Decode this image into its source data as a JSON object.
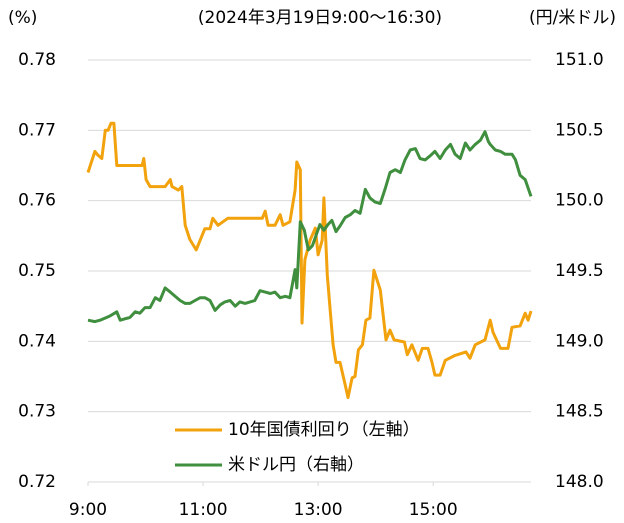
{
  "chart_data": {
    "type": "line",
    "title": "(2024年3月19日9:00～16:30)",
    "ylabel": "(%)",
    "y2label": "(円/米ドル)",
    "xlim": [
      9,
      16.7
    ],
    "xticks": [
      {
        "value": 9,
        "label": "9:00"
      },
      {
        "value": 11,
        "label": "11:00"
      },
      {
        "value": 13,
        "label": "13:00"
      },
      {
        "value": 15,
        "label": "15:00"
      }
    ],
    "ylim": [
      0.72,
      0.78
    ],
    "yticks": [
      0.72,
      0.73,
      0.74,
      0.75,
      0.76,
      0.77,
      0.78
    ],
    "y2lim": [
      148,
      151
    ],
    "y2ticks": [
      {
        "value": 148,
        "label": "148.0"
      },
      148.5,
      {
        "value": 149,
        "label": "149.0"
      },
      149.5,
      {
        "value": 150,
        "label": "150.0"
      },
      150.5,
      {
        "value": 151,
        "label": "151.0"
      }
    ],
    "grid": true,
    "legend": "lower center",
    "series": [
      {
        "name": "10年国債利回り（左軸）",
        "color": "#f2a20c",
        "x": [
          9.0,
          9.12,
          9.17,
          9.24,
          9.3,
          9.35,
          9.4,
          9.45,
          9.5,
          9.94,
          9.97,
          10.01,
          10.08,
          10.34,
          10.43,
          10.46,
          10.57,
          10.63,
          10.69,
          10.77,
          10.88,
          11.03,
          11.12,
          11.17,
          11.26,
          11.43,
          12.03,
          12.08,
          12.13,
          12.25,
          12.34,
          12.39,
          12.51,
          12.6,
          12.63,
          12.69,
          12.72,
          12.77,
          12.86,
          12.95,
          13.0,
          13.07,
          13.1,
          13.16,
          13.21,
          13.26,
          13.31,
          13.38,
          13.47,
          13.52,
          13.59,
          13.64,
          13.7,
          13.77,
          13.83,
          13.9,
          13.97,
          14.08,
          14.15,
          14.18,
          14.25,
          14.32,
          14.5,
          14.55,
          14.63,
          14.74,
          14.81,
          14.91,
          14.98,
          15.03,
          15.12,
          15.21,
          15.38,
          15.57,
          15.64,
          15.73,
          15.9,
          15.99,
          16.04,
          16.17,
          16.3,
          16.37,
          16.51,
          16.6,
          16.65,
          16.7
        ],
        "values": [
          0.764,
          0.767,
          0.7665,
          0.766,
          0.77,
          0.77,
          0.771,
          0.771,
          0.765,
          0.765,
          0.766,
          0.763,
          0.762,
          0.762,
          0.763,
          0.762,
          0.7615,
          0.762,
          0.7565,
          0.7545,
          0.753,
          0.756,
          0.756,
          0.7575,
          0.7565,
          0.7575,
          0.7575,
          0.7585,
          0.7565,
          0.7565,
          0.758,
          0.7565,
          0.757,
          0.7615,
          0.7655,
          0.7644,
          0.7426,
          0.7516,
          0.7544,
          0.7561,
          0.7523,
          0.7544,
          0.7604,
          0.7494,
          0.7444,
          0.7395,
          0.737,
          0.737,
          0.7338,
          0.732,
          0.7348,
          0.735,
          0.7388,
          0.7395,
          0.743,
          0.7433,
          0.7501,
          0.7473,
          0.7423,
          0.7402,
          0.7416,
          0.7402,
          0.7399,
          0.7381,
          0.7395,
          0.7373,
          0.739,
          0.739,
          0.737,
          0.7352,
          0.7352,
          0.7373,
          0.738,
          0.7385,
          0.7376,
          0.7395,
          0.7402,
          0.743,
          0.7413,
          0.739,
          0.739,
          0.742,
          0.7422,
          0.744,
          0.743,
          0.7443
        ]
      },
      {
        "name": "米ドル円（右軸）",
        "color": "#3f8f3f",
        "axis": "y2",
        "x": [
          9.0,
          9.12,
          9.21,
          9.38,
          9.5,
          9.56,
          9.73,
          9.82,
          9.9,
          9.99,
          10.08,
          10.17,
          10.25,
          10.34,
          10.43,
          10.6,
          10.69,
          10.77,
          10.86,
          10.95,
          11.03,
          11.12,
          11.21,
          11.3,
          11.38,
          11.47,
          11.56,
          11.64,
          11.73,
          11.9,
          11.99,
          12.08,
          12.17,
          12.25,
          12.34,
          12.43,
          12.51,
          12.6,
          12.63,
          12.69,
          12.76,
          12.83,
          12.9,
          12.97,
          13.03,
          13.1,
          13.17,
          13.24,
          13.31,
          13.38,
          13.47,
          13.56,
          13.64,
          13.73,
          13.82,
          13.9,
          13.99,
          14.08,
          14.17,
          14.25,
          14.34,
          14.43,
          14.51,
          14.6,
          14.69,
          14.77,
          14.86,
          14.95,
          15.03,
          15.12,
          15.21,
          15.3,
          15.38,
          15.47,
          15.56,
          15.64,
          15.73,
          15.82,
          15.9,
          15.96,
          15.99,
          16.08,
          16.17,
          16.25,
          16.37,
          16.43,
          16.51,
          16.6,
          16.7
        ],
        "values": [
          149.15,
          149.14,
          149.15,
          149.18,
          149.21,
          149.15,
          149.17,
          149.21,
          149.2,
          149.24,
          149.24,
          149.31,
          149.29,
          149.38,
          149.35,
          149.29,
          149.27,
          149.27,
          149.29,
          149.31,
          149.31,
          149.29,
          149.22,
          149.26,
          149.28,
          149.29,
          149.25,
          149.28,
          149.27,
          149.29,
          149.36,
          149.35,
          149.34,
          149.35,
          149.31,
          149.32,
          149.31,
          149.51,
          149.38,
          149.85,
          149.79,
          149.65,
          149.68,
          149.76,
          149.83,
          149.79,
          149.83,
          149.86,
          149.78,
          149.82,
          149.88,
          149.9,
          149.93,
          149.91,
          150.08,
          150.02,
          149.99,
          149.98,
          150.09,
          150.2,
          150.22,
          150.2,
          150.29,
          150.36,
          150.37,
          150.3,
          150.29,
          150.32,
          150.35,
          150.3,
          150.36,
          150.4,
          150.33,
          150.3,
          150.41,
          150.36,
          150.4,
          150.43,
          150.49,
          150.42,
          150.4,
          150.36,
          150.35,
          150.33,
          150.33,
          150.29,
          150.18,
          150.15,
          150.03
        ]
      }
    ]
  }
}
